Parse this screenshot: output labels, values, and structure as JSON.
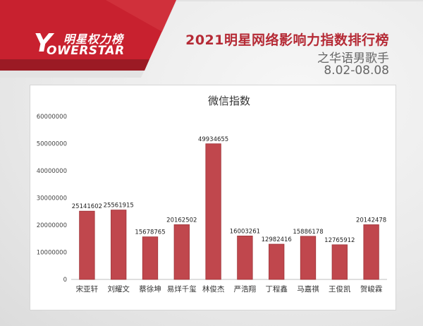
{
  "header": {
    "logo_cn": "明星权力榜",
    "logo_letter": "Y",
    "logo_en": "OWERSTAR",
    "title": "2021明星网络影响力指数排行榜",
    "subtitle": "之华语男歌手",
    "date_range": "8.02-08.08"
  },
  "colors": {
    "bar_fill": "#c0474d",
    "bar_stroke": "#9e3338",
    "banner_red": "#c8212f",
    "title_red": "#b52a35"
  },
  "chart_data": {
    "type": "bar",
    "title": "微信指数",
    "categories": [
      "宋亚轩",
      "刘耀文",
      "蔡徐坤",
      "易烊千玺",
      "林俊杰",
      "严浩翔",
      "丁程鑫",
      "马嘉祺",
      "王俊凯",
      "贺峻霖"
    ],
    "values": [
      25141602,
      25561915,
      15678765,
      20162502,
      49934655,
      16003261,
      12982416,
      15886178,
      12765912,
      20142478
    ],
    "ylim": [
      0,
      60000000
    ],
    "yticks": [
      0,
      10000000,
      20000000,
      30000000,
      40000000,
      50000000,
      60000000
    ],
    "grid": false,
    "legend": "none",
    "data_labels": true
  }
}
